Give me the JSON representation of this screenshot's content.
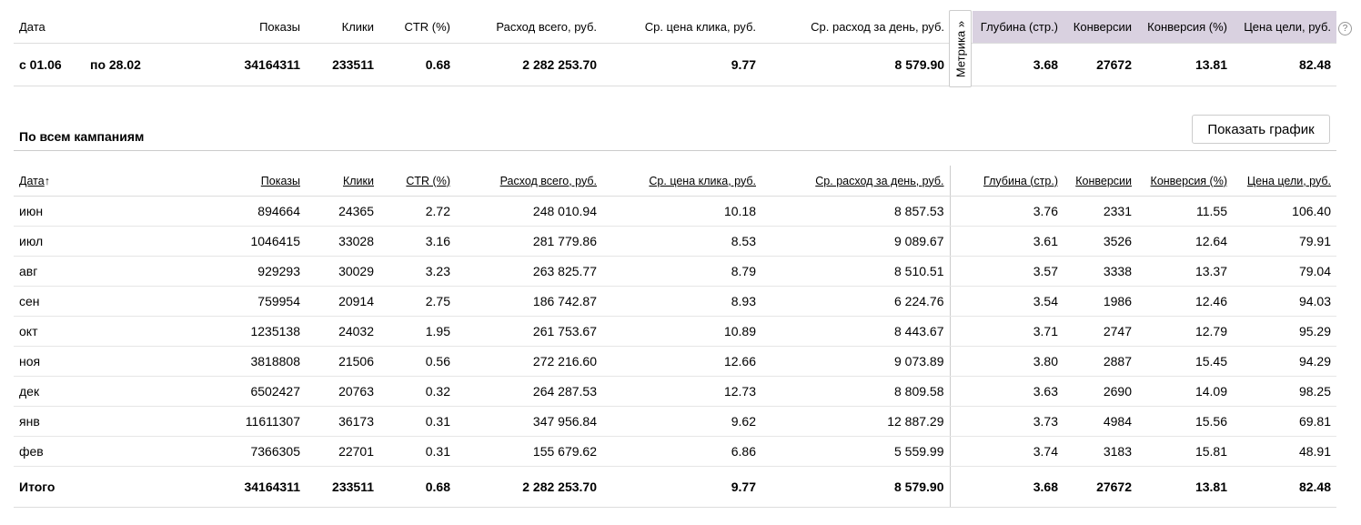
{
  "summary": {
    "headers": [
      "Дата",
      "Показы",
      "Клики",
      "CTR (%)",
      "Расход всего, руб.",
      "Ср. цена клика, руб.",
      "Ср. расход за день, руб.",
      "Глубина (стр.)",
      "Конверсии",
      "Конверсия (%)",
      "Цена цели, руб."
    ],
    "date_from": "с 01.06",
    "date_to": "по 28.02",
    "values": [
      "34164311",
      "233511",
      "0.68",
      "2 282 253.70",
      "9.77",
      "8 579.90",
      "3.68",
      "27672",
      "13.81",
      "82.48"
    ],
    "metrika_label": "Метрика »",
    "help_icon": "?",
    "metrika_header_color": "#d9d1e0"
  },
  "section": {
    "title": "По всем кампаниям",
    "chart_button": "Показать график"
  },
  "table": {
    "headers": [
      "Дата",
      "Показы",
      "Клики",
      "CTR (%)",
      "Расход всего, руб.",
      "Ср. цена клика, руб.",
      "Ср. расход за день, руб.",
      "Глубина (стр.)",
      "Конверсии",
      "Конверсия (%)",
      "Цена цели, руб."
    ],
    "sort_arrow": "↑",
    "rows": [
      [
        "июн",
        "894664",
        "24365",
        "2.72",
        "248 010.94",
        "10.18",
        "8 857.53",
        "3.76",
        "2331",
        "11.55",
        "106.40"
      ],
      [
        "июл",
        "1046415",
        "33028",
        "3.16",
        "281 779.86",
        "8.53",
        "9 089.67",
        "3.61",
        "3526",
        "12.64",
        "79.91"
      ],
      [
        "авг",
        "929293",
        "30029",
        "3.23",
        "263 825.77",
        "8.79",
        "8 510.51",
        "3.57",
        "3338",
        "13.37",
        "79.04"
      ],
      [
        "сен",
        "759954",
        "20914",
        "2.75",
        "186 742.87",
        "8.93",
        "6 224.76",
        "3.54",
        "1986",
        "12.46",
        "94.03"
      ],
      [
        "окт",
        "1235138",
        "24032",
        "1.95",
        "261 753.67",
        "10.89",
        "8 443.67",
        "3.71",
        "2747",
        "12.79",
        "95.29"
      ],
      [
        "ноя",
        "3818808",
        "21506",
        "0.56",
        "272 216.60",
        "12.66",
        "9 073.89",
        "3.80",
        "2887",
        "15.45",
        "94.29"
      ],
      [
        "дек",
        "6502427",
        "20763",
        "0.32",
        "264 287.53",
        "12.73",
        "8 809.58",
        "3.63",
        "2690",
        "14.09",
        "98.25"
      ],
      [
        "янв",
        "11611307",
        "36173",
        "0.31",
        "347 956.84",
        "9.62",
        "12 887.29",
        "3.73",
        "4984",
        "15.56",
        "69.81"
      ],
      [
        "фев",
        "7366305",
        "22701",
        "0.31",
        "155 679.62",
        "6.86",
        "5 559.99",
        "3.74",
        "3183",
        "15.81",
        "48.91"
      ]
    ],
    "total": [
      "Итого",
      "34164311",
      "233511",
      "0.68",
      "2 282 253.70",
      "9.77",
      "8 579.90",
      "3.68",
      "27672",
      "13.81",
      "82.48"
    ]
  }
}
